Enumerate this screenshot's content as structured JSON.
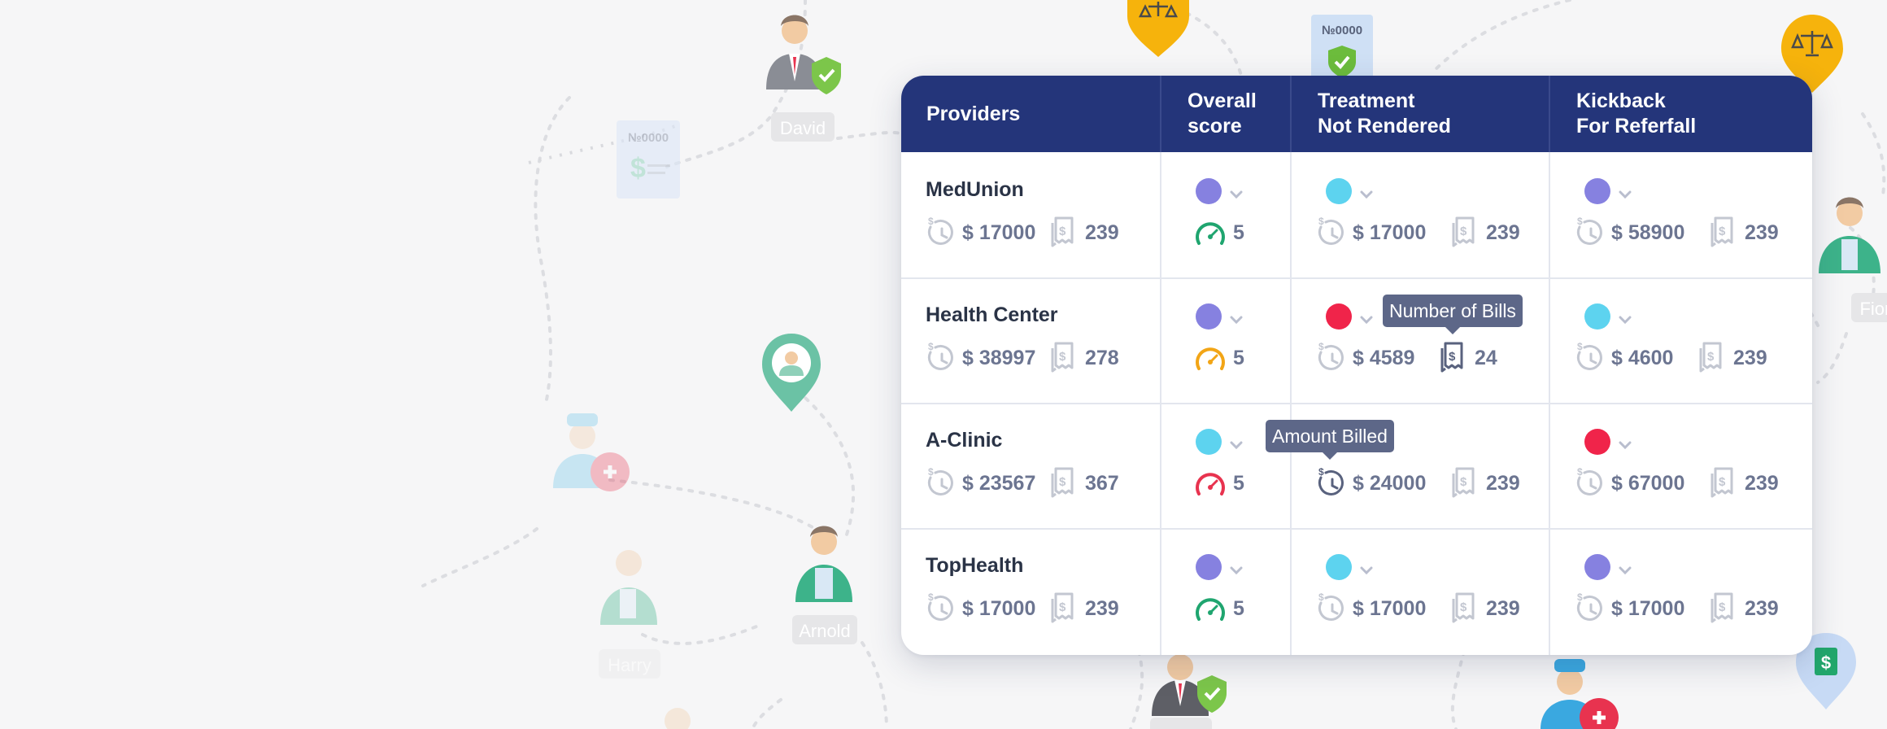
{
  "background": {
    "people": [
      "David",
      "Fiona",
      "Arnold",
      "Harry"
    ],
    "receipt_label": "№0000"
  },
  "table": {
    "headers": [
      {
        "line1": "Providers",
        "line2": ""
      },
      {
        "line1": "Overall",
        "line2": "score"
      },
      {
        "line1": "Treatment",
        "line2": "Not Rendered"
      },
      {
        "line1": "Kickback",
        "line2": "For Referfall"
      }
    ],
    "rows": [
      {
        "provider": {
          "name": "MedUnion",
          "amount": "$ 17000",
          "bills": "239"
        },
        "overall": {
          "status_color": "#8681e0",
          "gauge_color": "#1fa56f",
          "score": "5"
        },
        "treatment": {
          "status_color": "#5dd3ef",
          "amount": "$ 17000",
          "bills": "239"
        },
        "kickback": {
          "status_color": "#8681e0",
          "amount": "$ 58900",
          "bills": "239"
        }
      },
      {
        "provider": {
          "name": "Health Center",
          "amount": "$ 38997",
          "bills": "278"
        },
        "overall": {
          "status_color": "#8681e0",
          "gauge_color": "#f2a516",
          "score": "5"
        },
        "treatment": {
          "status_color": "#f0244a",
          "amount": "$ 4589",
          "bills": "24"
        },
        "kickback": {
          "status_color": "#5dd3ef",
          "amount": "$ 4600",
          "bills": "239"
        }
      },
      {
        "provider": {
          "name": "A-Clinic",
          "amount": "$ 23567",
          "bills": "367"
        },
        "overall": {
          "status_color": "#5dd3ef",
          "gauge_color": "#e8334f",
          "score": "5"
        },
        "treatment": {
          "status_color": "",
          "amount": "$ 24000",
          "bills": "239"
        },
        "kickback": {
          "status_color": "#f0244a",
          "amount": "$ 67000",
          "bills": "239"
        }
      },
      {
        "provider": {
          "name": "TopHealth",
          "amount": "$ 17000",
          "bills": "239"
        },
        "overall": {
          "status_color": "#8681e0",
          "gauge_color": "#1fa56f",
          "score": "5"
        },
        "treatment": {
          "status_color": "#5dd3ef",
          "amount": "$ 17000",
          "bills": "239"
        },
        "kickback": {
          "status_color": "#8681e0",
          "amount": "$ 17000",
          "bills": "239"
        }
      }
    ]
  },
  "tooltips": {
    "bills": "Number of Bills",
    "amount": "Amount Billed"
  }
}
